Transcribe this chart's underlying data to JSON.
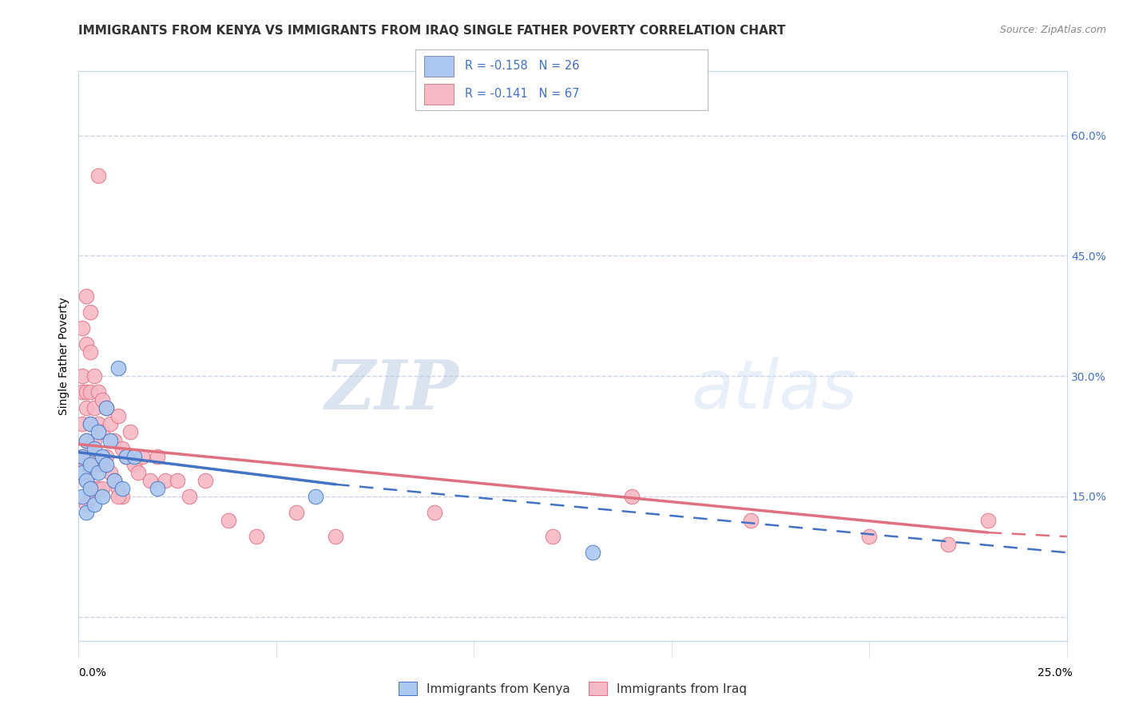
{
  "title": "IMMIGRANTS FROM KENYA VS IMMIGRANTS FROM IRAQ SINGLE FATHER POVERTY CORRELATION CHART",
  "source": "Source: ZipAtlas.com",
  "ylabel": "Single Father Poverty",
  "xlim": [
    0.0,
    0.25
  ],
  "ylim": [
    -0.03,
    0.68
  ],
  "legend_kenya_text": "R = -0.158   N = 26",
  "legend_iraq_text": "R = -0.141   N = 67",
  "legend_label_kenya": "Immigrants from Kenya",
  "legend_label_iraq": "Immigrants from Iraq",
  "kenya_color": "#aac8f0",
  "kenya_line_color": "#4472c4",
  "iraq_color": "#f5b8c4",
  "iraq_line_color": "#e07080",
  "watermark_zip": "ZIP",
  "watermark_atlas": "atlas",
  "background_color": "#ffffff",
  "grid_color": "#c8d4e8",
  "right_ytick_color": "#4472c4",
  "title_fontsize": 11,
  "axis_label_fontsize": 10,
  "tick_fontsize": 10,
  "kenya_x": [
    0.001,
    0.001,
    0.001,
    0.002,
    0.002,
    0.002,
    0.003,
    0.003,
    0.003,
    0.004,
    0.004,
    0.005,
    0.005,
    0.006,
    0.006,
    0.007,
    0.007,
    0.008,
    0.009,
    0.01,
    0.011,
    0.012,
    0.014,
    0.02,
    0.06,
    0.13
  ],
  "kenya_y": [
    0.2,
    0.18,
    0.15,
    0.22,
    0.17,
    0.13,
    0.19,
    0.16,
    0.24,
    0.21,
    0.14,
    0.18,
    0.23,
    0.2,
    0.15,
    0.26,
    0.19,
    0.22,
    0.17,
    0.31,
    0.16,
    0.2,
    0.2,
    0.16,
    0.15,
    0.08
  ],
  "iraq_x": [
    0.001,
    0.001,
    0.001,
    0.001,
    0.001,
    0.002,
    0.002,
    0.002,
    0.002,
    0.002,
    0.002,
    0.002,
    0.002,
    0.003,
    0.003,
    0.003,
    0.003,
    0.003,
    0.003,
    0.003,
    0.004,
    0.004,
    0.004,
    0.004,
    0.004,
    0.005,
    0.005,
    0.005,
    0.005,
    0.006,
    0.006,
    0.006,
    0.006,
    0.007,
    0.007,
    0.008,
    0.008,
    0.009,
    0.009,
    0.01,
    0.01,
    0.011,
    0.011,
    0.012,
    0.013,
    0.014,
    0.015,
    0.016,
    0.018,
    0.02,
    0.022,
    0.025,
    0.028,
    0.032,
    0.038,
    0.045,
    0.055,
    0.065,
    0.09,
    0.12,
    0.14,
    0.17,
    0.2,
    0.22,
    0.23,
    0.005,
    0.01
  ],
  "iraq_y": [
    0.36,
    0.3,
    0.28,
    0.24,
    0.2,
    0.4,
    0.34,
    0.28,
    0.26,
    0.22,
    0.19,
    0.17,
    0.14,
    0.38,
    0.33,
    0.28,
    0.24,
    0.2,
    0.18,
    0.15,
    0.3,
    0.26,
    0.22,
    0.2,
    0.16,
    0.28,
    0.24,
    0.19,
    0.16,
    0.27,
    0.23,
    0.19,
    0.16,
    0.26,
    0.2,
    0.24,
    0.18,
    0.22,
    0.17,
    0.25,
    0.16,
    0.21,
    0.15,
    0.2,
    0.23,
    0.19,
    0.18,
    0.2,
    0.17,
    0.2,
    0.17,
    0.17,
    0.15,
    0.17,
    0.12,
    0.1,
    0.13,
    0.1,
    0.13,
    0.1,
    0.15,
    0.12,
    0.1,
    0.09,
    0.12,
    0.55,
    0.15
  ],
  "kenya_trend_start": 0.0,
  "kenya_trend_solid_end": 0.065,
  "kenya_trend_end": 0.25,
  "kenya_trend_y0": 0.205,
  "kenya_trend_y_solid_end": 0.165,
  "kenya_trend_y_end": 0.08,
  "iraq_trend_start": 0.0,
  "iraq_trend_solid_end": 0.23,
  "iraq_trend_end": 0.25,
  "iraq_trend_y0": 0.215,
  "iraq_trend_y_solid_end": 0.105,
  "iraq_trend_y_end": 0.1
}
